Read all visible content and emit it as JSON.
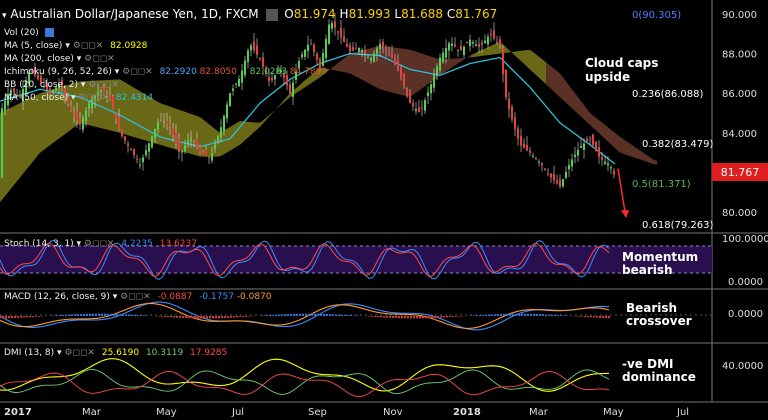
{
  "header": {
    "title": "Australian Dollar/Japanese Yen, 1D, FXCM",
    "ohlc": [
      {
        "k": "O",
        "v": "81.974"
      },
      {
        "k": "H",
        "v": "81.993"
      },
      {
        "k": "L",
        "v": "81.688"
      },
      {
        "k": "C",
        "v": "81.767"
      }
    ]
  },
  "indicators_main": [
    {
      "label": "Vol (20)",
      "value": "",
      "color": "#ffffff"
    },
    {
      "label": "MA (5, close)",
      "value": "82.0928",
      "color": "#ffff00"
    },
    {
      "label": "MA (200, close)",
      "value": "",
      "color": "#ffffff"
    },
    {
      "label": "Ichimoku (9, 26, 52, 26)",
      "value": "82.2920",
      "value2": "82.8050",
      "value3": "82.0283",
      "value4": "84.7869",
      "color": "#4fa3ff"
    },
    {
      "label": "BB (20, close, 2)",
      "value": "",
      "color": "#ffffff"
    },
    {
      "label": "MA (50, close)",
      "value": "82.4314",
      "color": "#29c0d8"
    }
  ],
  "price_axis": [
    "90.000",
    "88.000",
    "86.000",
    "84.000",
    "82.000",
    "80.000"
  ],
  "current_price": "81.767",
  "fib_levels": [
    {
      "label": "0(90.305)",
      "color": "#4f7fff"
    },
    {
      "label": "0.236(86.088)",
      "color": "#ffffff"
    },
    {
      "label": "0.382(83.479)",
      "color": "#ffffff"
    },
    {
      "label": "0.5(81.371)",
      "color": "#56b956"
    },
    {
      "label": "0.618(79.263)",
      "color": "#ffffff"
    }
  ],
  "annotations": {
    "cloud": "Cloud caps\nupside",
    "stoch": "Momentum\nbearish",
    "macd": "Bearish\ncrossover",
    "dmi": "-ve DMI\ndominance"
  },
  "stoch": {
    "label": "Stoch (14, 3, 1)",
    "v1": "4.2235",
    "v2": "13.6237",
    "axis": [
      "100.0000",
      "0.0000"
    ]
  },
  "macd": {
    "label": "MACD (12, 26, close, 9)",
    "v1": "-0.0887",
    "v2": "-0.1757",
    "v3": "-0.0870",
    "axis": "0.0000"
  },
  "dmi": {
    "label": "DMI (13, 8)",
    "v1": "25.6190",
    "v2": "10.3119",
    "v3": "17.9285",
    "axis": "40.0000"
  },
  "time_axis": [
    "2017",
    "Mar",
    "May",
    "Jul",
    "Sep",
    "Nov",
    "2018",
    "Mar",
    "May",
    "Jul"
  ],
  "chart_data": {
    "type": "candlestick",
    "title": "Australian Dollar/Japanese Yen, 1D, FXCM",
    "ylim": [
      79.0,
      90.5
    ],
    "price_path": [
      [
        0,
        85.0
      ],
      [
        10,
        86.2
      ],
      [
        20,
        85.8
      ],
      [
        30,
        87.2
      ],
      [
        40,
        86.6
      ],
      [
        50,
        86.0
      ],
      [
        60,
        86.5
      ],
      [
        70,
        85.2
      ],
      [
        80,
        84.4
      ],
      [
        90,
        85.6
      ],
      [
        100,
        86.2
      ],
      [
        110,
        85.7
      ],
      [
        120,
        84.0
      ],
      [
        130,
        83.2
      ],
      [
        140,
        82.4
      ],
      [
        150,
        83.6
      ],
      [
        160,
        84.8
      ],
      [
        170,
        84.3
      ],
      [
        180,
        82.9
      ],
      [
        190,
        83.8
      ],
      [
        200,
        83.0
      ],
      [
        210,
        82.7
      ],
      [
        220,
        84.1
      ],
      [
        230,
        86.0
      ],
      [
        240,
        86.8
      ],
      [
        250,
        88.5
      ],
      [
        260,
        87.7
      ],
      [
        270,
        86.5
      ],
      [
        280,
        87.3
      ],
      [
        290,
        86.0
      ],
      [
        300,
        87.8
      ],
      [
        310,
        88.6
      ],
      [
        320,
        87.3
      ],
      [
        330,
        89.7
      ],
      [
        340,
        88.9
      ],
      [
        350,
        88.1
      ],
      [
        360,
        88.3
      ],
      [
        370,
        87.7
      ],
      [
        380,
        88.5
      ],
      [
        390,
        88.0
      ],
      [
        400,
        87.0
      ],
      [
        410,
        85.5
      ],
      [
        420,
        85.0
      ],
      [
        430,
        86.3
      ],
      [
        440,
        87.8
      ],
      [
        450,
        88.6
      ],
      [
        460,
        88.1
      ],
      [
        470,
        88.7
      ],
      [
        480,
        88.3
      ],
      [
        490,
        89.0
      ],
      [
        500,
        88.4
      ],
      [
        505,
        86.0
      ],
      [
        510,
        85.0
      ],
      [
        520,
        83.4
      ],
      [
        530,
        83.0
      ],
      [
        540,
        82.5
      ],
      [
        550,
        81.8
      ],
      [
        560,
        81.3
      ],
      [
        570,
        82.5
      ],
      [
        580,
        83.3
      ],
      [
        590,
        83.7
      ],
      [
        600,
        82.7
      ],
      [
        610,
        82.4
      ],
      [
        615,
        81.77
      ]
    ],
    "ma50": [
      [
        0,
        85.6
      ],
      [
        40,
        86.2
      ],
      [
        80,
        85.8
      ],
      [
        120,
        84.9
      ],
      [
        160,
        83.8
      ],
      [
        200,
        83.3
      ],
      [
        230,
        83.7
      ],
      [
        260,
        85.5
      ],
      [
        290,
        86.7
      ],
      [
        320,
        87.5
      ],
      [
        350,
        88.0
      ],
      [
        380,
        87.9
      ],
      [
        410,
        87.2
      ],
      [
        440,
        86.9
      ],
      [
        470,
        87.5
      ],
      [
        500,
        87.8
      ],
      [
        530,
        86.3
      ],
      [
        560,
        84.5
      ],
      [
        590,
        83.4
      ],
      [
        615,
        82.43
      ]
    ],
    "cloud_top": [
      [
        0,
        85.0
      ],
      [
        40,
        86.0
      ],
      [
        80,
        86.6
      ],
      [
        120,
        86.7
      ],
      [
        160,
        85.5
      ],
      [
        200,
        84.8
      ],
      [
        220,
        84.0
      ],
      [
        240,
        84.6
      ],
      [
        260,
        84.5
      ],
      [
        290,
        85.8
      ],
      [
        320,
        86.8
      ],
      [
        350,
        88.0
      ],
      [
        380,
        88.4
      ],
      [
        410,
        88.2
      ],
      [
        440,
        87.7
      ],
      [
        470,
        87.8
      ],
      [
        500,
        88.0
      ],
      [
        530,
        88.2
      ],
      [
        560,
        87.0
      ],
      [
        590,
        85.0
      ],
      [
        620,
        83.8
      ],
      [
        655,
        82.6
      ]
    ],
    "cloud_bottom": [
      [
        0,
        80.5
      ],
      [
        40,
        83.0
      ],
      [
        80,
        84.5
      ],
      [
        120,
        84.0
      ],
      [
        160,
        83.4
      ],
      [
        200,
        82.8
      ],
      [
        220,
        82.8
      ],
      [
        240,
        83.4
      ],
      [
        260,
        84.3
      ],
      [
        290,
        86.0
      ],
      [
        320,
        87.3
      ],
      [
        350,
        87.0
      ],
      [
        380,
        86.2
      ],
      [
        410,
        85.8
      ],
      [
        440,
        86.9
      ],
      [
        470,
        87.9
      ],
      [
        500,
        88.6
      ],
      [
        530,
        87.2
      ],
      [
        560,
        85.8
      ],
      [
        590,
        84.4
      ],
      [
        620,
        83.0
      ],
      [
        655,
        82.4
      ]
    ],
    "forecast_arrow": {
      "from": [
        618,
        82.2
      ],
      "to": [
        625,
        79.8
      ]
    }
  }
}
